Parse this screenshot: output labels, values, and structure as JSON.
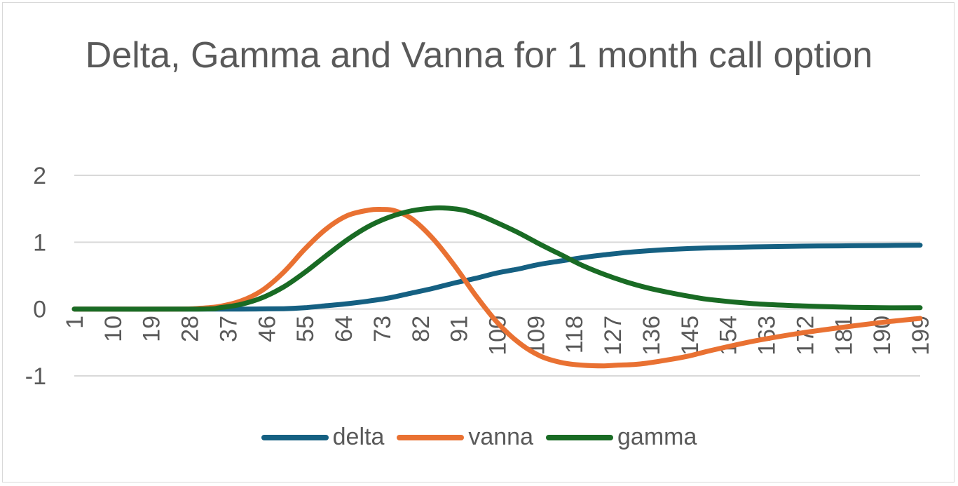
{
  "chart_data": {
    "type": "line",
    "title": "Delta, Gamma and Vanna for 1 month call option",
    "xlabel": "",
    "ylabel": "",
    "ylim": [
      -1,
      2
    ],
    "yticks": [
      "2",
      "1",
      "0",
      "-1"
    ],
    "x_range": [
      1,
      199
    ],
    "xticks": [
      "1",
      "10",
      "19",
      "28",
      "37",
      "46",
      "55",
      "64",
      "73",
      "82",
      "91",
      "100",
      "109",
      "118",
      "127",
      "136",
      "145",
      "154",
      "163",
      "172",
      "181",
      "190",
      "199"
    ],
    "grid": "horizontal",
    "legend": "bottom",
    "series": [
      {
        "name": "delta",
        "color": "#156082",
        "x": [
          1,
          20,
          30,
          40,
          50,
          55,
          60,
          65,
          70,
          75,
          80,
          85,
          90,
          95,
          100,
          105,
          110,
          115,
          120,
          125,
          130,
          135,
          140,
          145,
          150,
          160,
          170,
          180,
          190,
          199
        ],
        "values": [
          0,
          0,
          0,
          0,
          0.005,
          0.02,
          0.05,
          0.08,
          0.12,
          0.17,
          0.24,
          0.31,
          0.39,
          0.46,
          0.54,
          0.6,
          0.67,
          0.72,
          0.77,
          0.81,
          0.845,
          0.87,
          0.89,
          0.905,
          0.915,
          0.93,
          0.94,
          0.945,
          0.95,
          0.955
        ]
      },
      {
        "name": "vanna",
        "color": "#E97132",
        "x": [
          1,
          25,
          30,
          35,
          40,
          45,
          50,
          55,
          60,
          65,
          70,
          73,
          76,
          80,
          85,
          90,
          95,
          100,
          105,
          110,
          115,
          120,
          125,
          128,
          132,
          135,
          140,
          145,
          150,
          160,
          170,
          180,
          190,
          199
        ],
        "values": [
          0,
          0,
          0.01,
          0.04,
          0.12,
          0.28,
          0.55,
          0.9,
          1.2,
          1.4,
          1.48,
          1.49,
          1.47,
          1.35,
          1.05,
          0.65,
          0.2,
          -0.2,
          -0.5,
          -0.7,
          -0.8,
          -0.84,
          -0.85,
          -0.84,
          -0.83,
          -0.81,
          -0.76,
          -0.7,
          -0.62,
          -0.48,
          -0.37,
          -0.28,
          -0.2,
          -0.14
        ]
      },
      {
        "name": "gamma",
        "color": "#196B24",
        "x": [
          1,
          30,
          35,
          40,
          45,
          50,
          55,
          60,
          65,
          70,
          75,
          80,
          85,
          88,
          92,
          96,
          100,
          105,
          110,
          115,
          120,
          125,
          130,
          135,
          140,
          145,
          150,
          160,
          170,
          180,
          190,
          199
        ],
        "values": [
          0,
          0,
          0.02,
          0.07,
          0.17,
          0.33,
          0.55,
          0.8,
          1.04,
          1.24,
          1.38,
          1.47,
          1.51,
          1.51,
          1.48,
          1.4,
          1.29,
          1.14,
          0.97,
          0.81,
          0.65,
          0.52,
          0.41,
          0.32,
          0.25,
          0.19,
          0.14,
          0.08,
          0.05,
          0.03,
          0.02,
          0.02
        ]
      }
    ]
  }
}
